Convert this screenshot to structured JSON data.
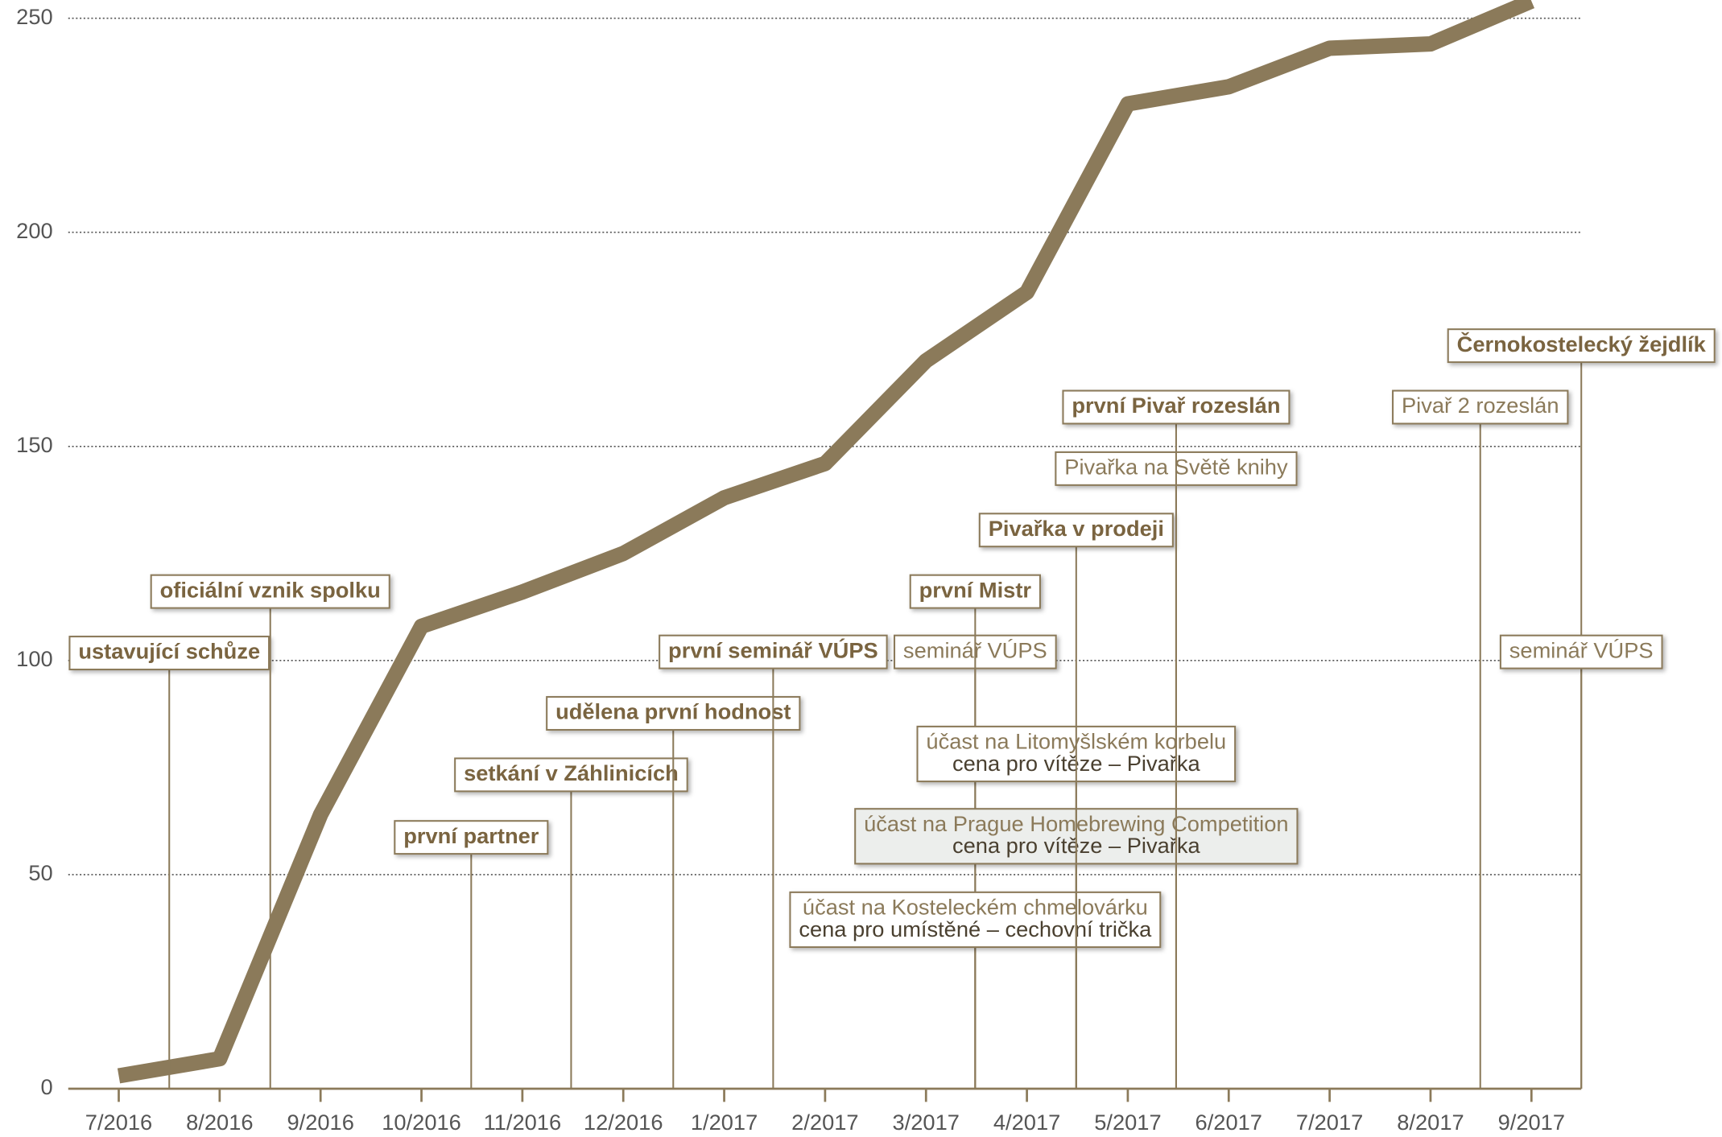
{
  "chart_data": {
    "type": "line",
    "categories": [
      "7/2016",
      "8/2016",
      "9/2016",
      "10/2016",
      "11/2016",
      "12/2016",
      "1/2017",
      "2/2017",
      "3/2017",
      "4/2017",
      "5/2017",
      "6/2017",
      "7/2017",
      "8/2017",
      "9/2017"
    ],
    "values": [
      3,
      7,
      64,
      108,
      116,
      125,
      138,
      146,
      170,
      186,
      230,
      234,
      243,
      244,
      254
    ],
    "color": "#8b7a5a",
    "ylim": [
      0,
      254
    ],
    "yticks": [
      0,
      50,
      100,
      150,
      200,
      250
    ],
    "grid": true,
    "annotations": [
      {
        "lines": [
          "ustavující schůze"
        ],
        "bold": true
      },
      {
        "lines": [
          "oficiální vznik spolku"
        ],
        "bold": true
      },
      {
        "lines": [
          "první partner"
        ],
        "bold": true
      },
      {
        "lines": [
          "setkání v Záhlinicích"
        ],
        "bold": true
      },
      {
        "lines": [
          "udělena první hodnost"
        ],
        "bold": true
      },
      {
        "lines": [
          "první seminář VÚPS"
        ],
        "bold": true
      },
      {
        "lines": [
          "seminář VÚPS"
        ],
        "bold": false
      },
      {
        "lines": [
          "první Mistr"
        ],
        "bold": true
      },
      {
        "lines": [
          "účast na Kosteleckém chmelovárku",
          "cena pro umístěné – cechovní trička"
        ],
        "bold": false
      },
      {
        "lines": [
          "účast na Prague Homebrewing Competition",
          "cena pro vítěze – Pivařka"
        ],
        "bold": false
      },
      {
        "lines": [
          "účast na Litomyšlském korbelu",
          "cena pro vítěze – Pivařka"
        ],
        "bold": false
      },
      {
        "lines": [
          "Pivařka v prodeji"
        ],
        "bold": true
      },
      {
        "lines": [
          "Pivařka na Světě knihy"
        ],
        "bold": false
      },
      {
        "lines": [
          "první Pivař rozeslán"
        ],
        "bold": true
      },
      {
        "lines": [
          "Pivař 2 rozeslán"
        ],
        "bold": false
      },
      {
        "lines": [
          "Černokostelecký žejdlík"
        ],
        "bold": true
      },
      {
        "lines": [
          "seminář VÚPS"
        ],
        "bold": false
      }
    ]
  }
}
